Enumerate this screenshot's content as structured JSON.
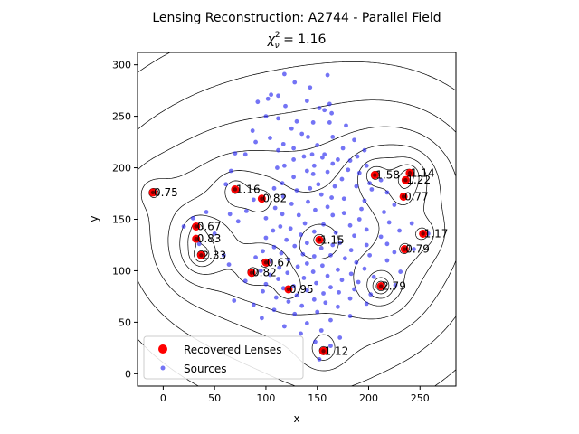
{
  "chart_data": {
    "type": "scatter",
    "title": "Lensing Reconstruction: A2744 - Parallel Field",
    "subtitle": "χ²ν = 1.16",
    "subtitle_parts": {
      "base": "χ",
      "sup": "2",
      "sub": "ν",
      "rest": " = 1.16"
    },
    "xlabel": "x",
    "ylabel": "y",
    "xlim": [
      -25,
      285
    ],
    "ylim": [
      -12,
      312
    ],
    "x_ticks": [
      0,
      50,
      100,
      150,
      200,
      250
    ],
    "y_ticks": [
      0,
      50,
      100,
      150,
      200,
      250,
      300
    ],
    "grid": false,
    "legend_position": "lower-left",
    "colors": {
      "lens_fill": "#ff0000",
      "lens_dark": "#7a0000",
      "sources": "#2a2af0",
      "contour": "#000000"
    },
    "lenses": [
      {
        "x": -10,
        "y": 176,
        "label": "0.75"
      },
      {
        "x": 70,
        "y": 179,
        "label": "1.16"
      },
      {
        "x": 96,
        "y": 170,
        "label": "0.82"
      },
      {
        "x": 32,
        "y": 143,
        "label": "0.67"
      },
      {
        "x": 32,
        "y": 131,
        "label": "0.83"
      },
      {
        "x": 37,
        "y": 115,
        "label": "2.33"
      },
      {
        "x": 86,
        "y": 98,
        "label": "0.82"
      },
      {
        "x": 100,
        "y": 108,
        "label": "0.67"
      },
      {
        "x": 122,
        "y": 82,
        "label": "0.95"
      },
      {
        "x": 152,
        "y": 130,
        "label": "1.15"
      },
      {
        "x": 156,
        "y": 22,
        "label": "1.12"
      },
      {
        "x": 206,
        "y": 193,
        "label": "1.58"
      },
      {
        "x": 236,
        "y": 188,
        "label": "1.22"
      },
      {
        "x": 240,
        "y": 195,
        "label": "1.14"
      },
      {
        "x": 234,
        "y": 172,
        "label": "0.77"
      },
      {
        "x": 253,
        "y": 136,
        "label": "1.17"
      },
      {
        "x": 235,
        "y": 121,
        "label": "0.79"
      },
      {
        "x": 212,
        "y": 85,
        "label": "2.79"
      }
    ],
    "sources": [
      [
        160,
        290
      ],
      [
        118,
        291
      ],
      [
        128,
        283
      ],
      [
        143,
        278
      ],
      [
        105,
        271
      ],
      [
        112,
        270
      ],
      [
        102,
        267
      ],
      [
        140,
        265
      ],
      [
        92,
        264
      ],
      [
        162,
        262
      ],
      [
        119,
        260
      ],
      [
        152,
        258
      ],
      [
        157,
        256
      ],
      [
        164,
        253
      ],
      [
        100,
        250
      ],
      [
        112,
        248
      ],
      [
        130,
        245
      ],
      [
        146,
        244
      ],
      [
        162,
        244
      ],
      [
        178,
        241
      ],
      [
        125,
        238
      ],
      [
        87,
        236
      ],
      [
        135,
        233
      ],
      [
        141,
        230
      ],
      [
        165,
        230
      ],
      [
        104,
        229
      ],
      [
        186,
        227
      ],
      [
        90,
        225
      ],
      [
        117,
        223
      ],
      [
        150,
        222
      ],
      [
        127,
        219
      ],
      [
        175,
        219
      ],
      [
        112,
        217
      ],
      [
        196,
        217
      ],
      [
        70,
        214
      ],
      [
        145,
        213
      ],
      [
        157,
        213
      ],
      [
        80,
        213
      ],
      [
        137,
        211
      ],
      [
        189,
        211
      ],
      [
        155,
        210
      ],
      [
        127,
        208
      ],
      [
        170,
        208
      ],
      [
        182,
        207
      ],
      [
        165,
        204
      ],
      [
        118,
        202
      ],
      [
        147,
        202
      ],
      [
        198,
        202
      ],
      [
        111,
        200
      ],
      [
        180,
        198
      ],
      [
        140,
        197
      ],
      [
        66,
        197
      ],
      [
        160,
        196
      ],
      [
        191,
        195
      ],
      [
        146,
        194
      ],
      [
        127,
        191
      ],
      [
        174,
        189
      ],
      [
        212,
        188
      ],
      [
        201,
        185
      ],
      [
        116,
        185
      ],
      [
        151,
        184
      ],
      [
        61,
        184
      ],
      [
        167,
        182
      ],
      [
        188,
        182
      ],
      [
        143,
        180
      ],
      [
        108,
        180
      ],
      [
        203,
        179
      ],
      [
        130,
        178
      ],
      [
        218,
        176
      ],
      [
        154,
        174
      ],
      [
        117,
        172
      ],
      [
        164,
        171
      ],
      [
        176,
        170
      ],
      [
        88,
        169
      ],
      [
        196,
        168
      ],
      [
        141,
        167
      ],
      [
        125,
        165
      ],
      [
        225,
        164
      ],
      [
        160,
        162
      ],
      [
        109,
        161
      ],
      [
        193,
        160
      ],
      [
        148,
        159
      ],
      [
        81,
        158
      ],
      [
        215,
        157
      ],
      [
        42,
        157
      ],
      [
        176,
        156
      ],
      [
        65,
        155
      ],
      [
        116,
        155
      ],
      [
        132,
        154
      ],
      [
        165,
        154
      ],
      [
        29,
        151
      ],
      [
        100,
        151
      ],
      [
        191,
        150
      ],
      [
        73,
        148
      ],
      [
        220,
        147
      ],
      [
        138,
        146
      ],
      [
        242,
        146
      ],
      [
        156,
        145
      ],
      [
        182,
        144
      ],
      [
        114,
        143
      ],
      [
        20,
        143
      ],
      [
        124,
        141
      ],
      [
        198,
        140
      ],
      [
        230,
        139
      ],
      [
        107,
        139
      ],
      [
        147,
        138
      ],
      [
        168,
        137
      ],
      [
        258,
        136
      ],
      [
        50,
        136
      ],
      [
        134,
        135
      ],
      [
        186,
        134
      ],
      [
        212,
        133
      ],
      [
        100,
        132
      ],
      [
        120,
        130
      ],
      [
        140,
        127
      ],
      [
        172,
        127
      ],
      [
        218,
        126
      ],
      [
        35,
        126
      ],
      [
        165,
        125
      ],
      [
        198,
        125
      ],
      [
        128,
        124
      ],
      [
        108,
        123
      ],
      [
        154,
        122
      ],
      [
        244,
        121
      ],
      [
        183,
        120
      ],
      [
        97,
        119
      ],
      [
        225,
        118
      ],
      [
        115,
        117
      ],
      [
        136,
        116
      ],
      [
        59,
        115
      ],
      [
        163,
        115
      ],
      [
        201,
        115
      ],
      [
        147,
        114
      ],
      [
        90,
        113
      ],
      [
        177,
        112
      ],
      [
        122,
        111
      ],
      [
        218,
        110
      ],
      [
        104,
        109
      ],
      [
        188,
        108
      ],
      [
        140,
        107
      ],
      [
        64,
        106
      ],
      [
        155,
        105
      ],
      [
        131,
        104
      ],
      [
        113,
        103
      ],
      [
        196,
        102
      ],
      [
        170,
        101
      ],
      [
        95,
        100
      ],
      [
        146,
        99
      ],
      [
        231,
        99
      ],
      [
        121,
        98
      ],
      [
        183,
        97
      ],
      [
        104,
        96
      ],
      [
        160,
        95
      ],
      [
        205,
        94
      ],
      [
        137,
        93
      ],
      [
        112,
        92
      ],
      [
        174,
        91
      ],
      [
        80,
        90
      ],
      [
        190,
        89
      ],
      [
        149,
        88
      ],
      [
        100,
        87
      ],
      [
        226,
        86
      ],
      [
        127,
        85
      ],
      [
        163,
        84
      ],
      [
        117,
        83
      ],
      [
        186,
        82
      ],
      [
        140,
        81
      ],
      [
        97,
        80
      ],
      [
        171,
        79
      ],
      [
        156,
        78
      ],
      [
        202,
        77
      ],
      [
        130,
        76
      ],
      [
        110,
        74
      ],
      [
        182,
        73
      ],
      [
        147,
        72
      ],
      [
        69,
        71
      ],
      [
        122,
        70
      ],
      [
        158,
        69
      ],
      [
        198,
        68
      ],
      [
        88,
        67
      ],
      [
        135,
        66
      ],
      [
        170,
        65
      ],
      [
        108,
        62
      ],
      [
        150,
        60
      ],
      [
        128,
        58
      ],
      [
        182,
        56
      ],
      [
        96,
        54
      ],
      [
        163,
        52
      ],
      [
        140,
        49
      ],
      [
        118,
        46
      ],
      [
        154,
        42
      ],
      [
        134,
        39
      ],
      [
        172,
        35
      ],
      [
        148,
        31
      ],
      [
        163,
        27
      ],
      [
        152,
        14
      ]
    ]
  },
  "legend": {
    "items": [
      {
        "label": "Recovered Lenses",
        "kind": "lens"
      },
      {
        "label": "Sources",
        "kind": "source"
      }
    ]
  }
}
